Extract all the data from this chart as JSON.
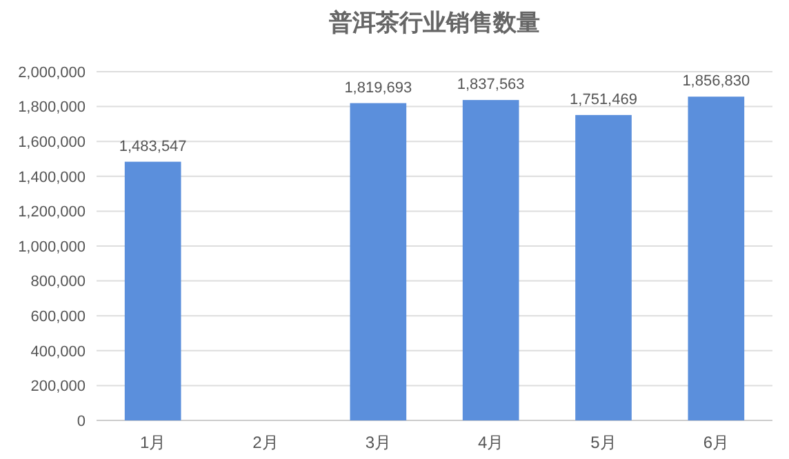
{
  "chart_data": {
    "type": "bar",
    "title": "普洱茶行业销售数量",
    "categories": [
      "1月",
      "2月",
      "3月",
      "4月",
      "5月",
      "6月"
    ],
    "values": [
      1483547,
      null,
      1819693,
      1837563,
      1751469,
      1856830
    ],
    "value_labels": [
      "1,483,547",
      null,
      "1,819,693",
      "1,837,563",
      "1,751,469",
      "1,856,830"
    ],
    "color": "#5b8fdc",
    "ylim": [
      0,
      2000000
    ],
    "yticks": [
      {
        "value": 0,
        "label": "0"
      },
      {
        "value": 200000,
        "label": "200,000"
      },
      {
        "value": 400000,
        "label": "400,000"
      },
      {
        "value": 600000,
        "label": "600,000"
      },
      {
        "value": 800000,
        "label": "800,000"
      },
      {
        "value": 1000000,
        "label": "1,000,000"
      },
      {
        "value": 1200000,
        "label": "1,200,000"
      },
      {
        "value": 1400000,
        "label": "1,400,000"
      },
      {
        "value": 1600000,
        "label": "1,600,000"
      },
      {
        "value": 1800000,
        "label": "1,800,000"
      },
      {
        "value": 2000000,
        "label": "2,000,000"
      }
    ],
    "grid": true
  }
}
